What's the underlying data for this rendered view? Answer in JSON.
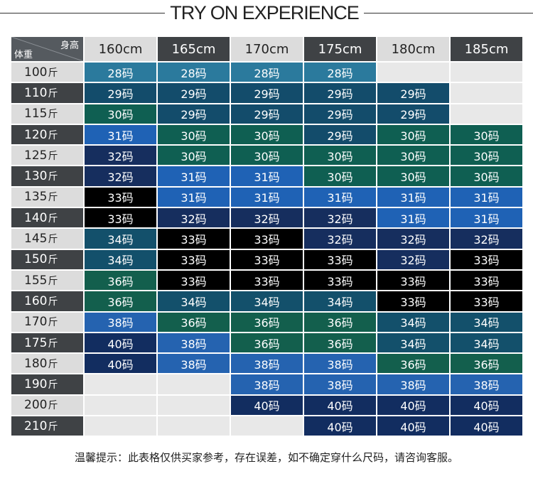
{
  "title": "TRY ON EXPERIENCE",
  "corner": {
    "height_label": "身高",
    "weight_label": "体重"
  },
  "heights": [
    "160cm",
    "165cm",
    "170cm",
    "175cm",
    "180cm",
    "185cm"
  ],
  "weight_unit": "斤",
  "rows": [
    {
      "weight": "100",
      "sizes": [
        "28码",
        "28码",
        "28码",
        "28码",
        "",
        ""
      ]
    },
    {
      "weight": "110",
      "sizes": [
        "29码",
        "29码",
        "29码",
        "29码",
        "29码",
        ""
      ]
    },
    {
      "weight": "115",
      "sizes": [
        "30码",
        "29码",
        "29码",
        "29码",
        "29码",
        ""
      ]
    },
    {
      "weight": "120",
      "sizes": [
        "31码",
        "30码",
        "30码",
        "29码",
        "30码",
        "30码"
      ]
    },
    {
      "weight": "125",
      "sizes": [
        "32码",
        "30码",
        "30码",
        "30码",
        "30码",
        "30码"
      ]
    },
    {
      "weight": "130",
      "sizes": [
        "32码",
        "31码",
        "31码",
        "30码",
        "30码",
        "30码"
      ]
    },
    {
      "weight": "135",
      "sizes": [
        "33码",
        "31码",
        "31码",
        "31码",
        "31码",
        "31码"
      ]
    },
    {
      "weight": "140",
      "sizes": [
        "33码",
        "32码",
        "32码",
        "32码",
        "31码",
        "31码"
      ]
    },
    {
      "weight": "145",
      "sizes": [
        "34码",
        "33码",
        "33码",
        "32码",
        "32码",
        "32码"
      ]
    },
    {
      "weight": "150",
      "sizes": [
        "34码",
        "33码",
        "33码",
        "33码",
        "32码",
        "33码"
      ]
    },
    {
      "weight": "155",
      "sizes": [
        "36码",
        "33码",
        "33码",
        "33码",
        "33码",
        "33码"
      ]
    },
    {
      "weight": "160",
      "sizes": [
        "36码",
        "34码",
        "34码",
        "34码",
        "33码",
        "33码"
      ]
    },
    {
      "weight": "170",
      "sizes": [
        "38码",
        "36码",
        "36码",
        "36码",
        "34码",
        "34码"
      ]
    },
    {
      "weight": "175",
      "sizes": [
        "40码",
        "38码",
        "36码",
        "36码",
        "34码",
        "34码"
      ]
    },
    {
      "weight": "180",
      "sizes": [
        "40码",
        "38码",
        "38码",
        "38码",
        "36码",
        "36码"
      ]
    },
    {
      "weight": "190",
      "sizes": [
        "",
        "",
        "38码",
        "38码",
        "38码",
        "38码"
      ]
    },
    {
      "weight": "200",
      "sizes": [
        "",
        "",
        "40码",
        "40码",
        "40码",
        "40码"
      ]
    },
    {
      "weight": "210",
      "sizes": [
        "",
        "",
        "",
        "40码",
        "40码",
        "40码"
      ]
    }
  ],
  "size_colors": {
    "28": "#2b7a9d",
    "29": "#134c6b",
    "30": "#0f5f52",
    "31": "#1f62b5",
    "32": "#162e5e",
    "33": "#000000",
    "34": "#13506b",
    "36": "#135f4d",
    "38": "#2563b0",
    "40": "#122d60"
  },
  "note": "温馨提示：此表格仅供买家参考，存在误差，如不确定穿什么尺码，请咨询客服。"
}
